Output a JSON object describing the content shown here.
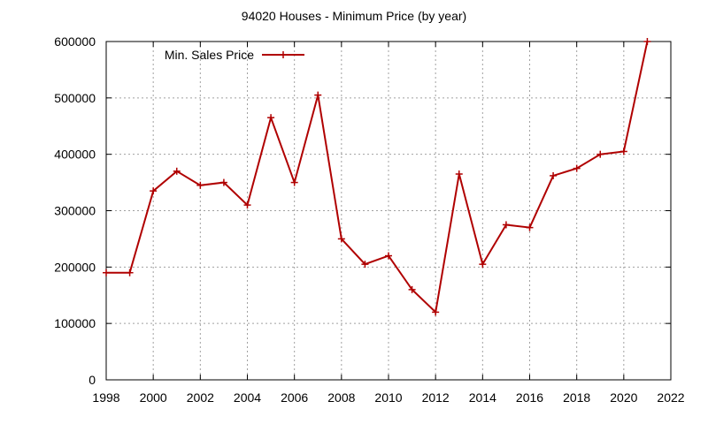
{
  "chart_data": {
    "type": "line",
    "title": "94020 Houses - Minimum Price (by year)",
    "xlabel": "",
    "ylabel": "",
    "xlim": [
      1998,
      2022
    ],
    "ylim": [
      0,
      600000
    ],
    "x_ticks": [
      "1998",
      "2000",
      "2002",
      "2004",
      "2006",
      "2008",
      "2010",
      "2012",
      "2014",
      "2016",
      "2018",
      "2020",
      "2022"
    ],
    "y_ticks": [
      "0",
      "100000",
      "200000",
      "300000",
      "400000",
      "500000",
      "600000"
    ],
    "x_tick_values": [
      1998,
      2000,
      2002,
      2004,
      2006,
      2008,
      2010,
      2012,
      2014,
      2016,
      2018,
      2020,
      2022
    ],
    "y_tick_values": [
      0,
      100000,
      200000,
      300000,
      400000,
      500000,
      600000
    ],
    "grid": true,
    "legend_position": "top-left",
    "series": [
      {
        "name": "Min. Sales Price",
        "color": "#b00000",
        "x": [
          1998,
          1999,
          2000,
          2001,
          2002,
          2003,
          2004,
          2005,
          2006,
          2007,
          2008,
          2009,
          2010,
          2011,
          2012,
          2013,
          2014,
          2015,
          2016,
          2017,
          2018,
          2019,
          2020,
          2021
        ],
        "values": [
          190000,
          190000,
          335000,
          370000,
          345000,
          350000,
          310000,
          465000,
          350000,
          505000,
          250000,
          205000,
          220000,
          160000,
          120000,
          365000,
          205000,
          275000,
          270000,
          362000,
          375000,
          400000,
          405000,
          600000
        ]
      }
    ]
  }
}
